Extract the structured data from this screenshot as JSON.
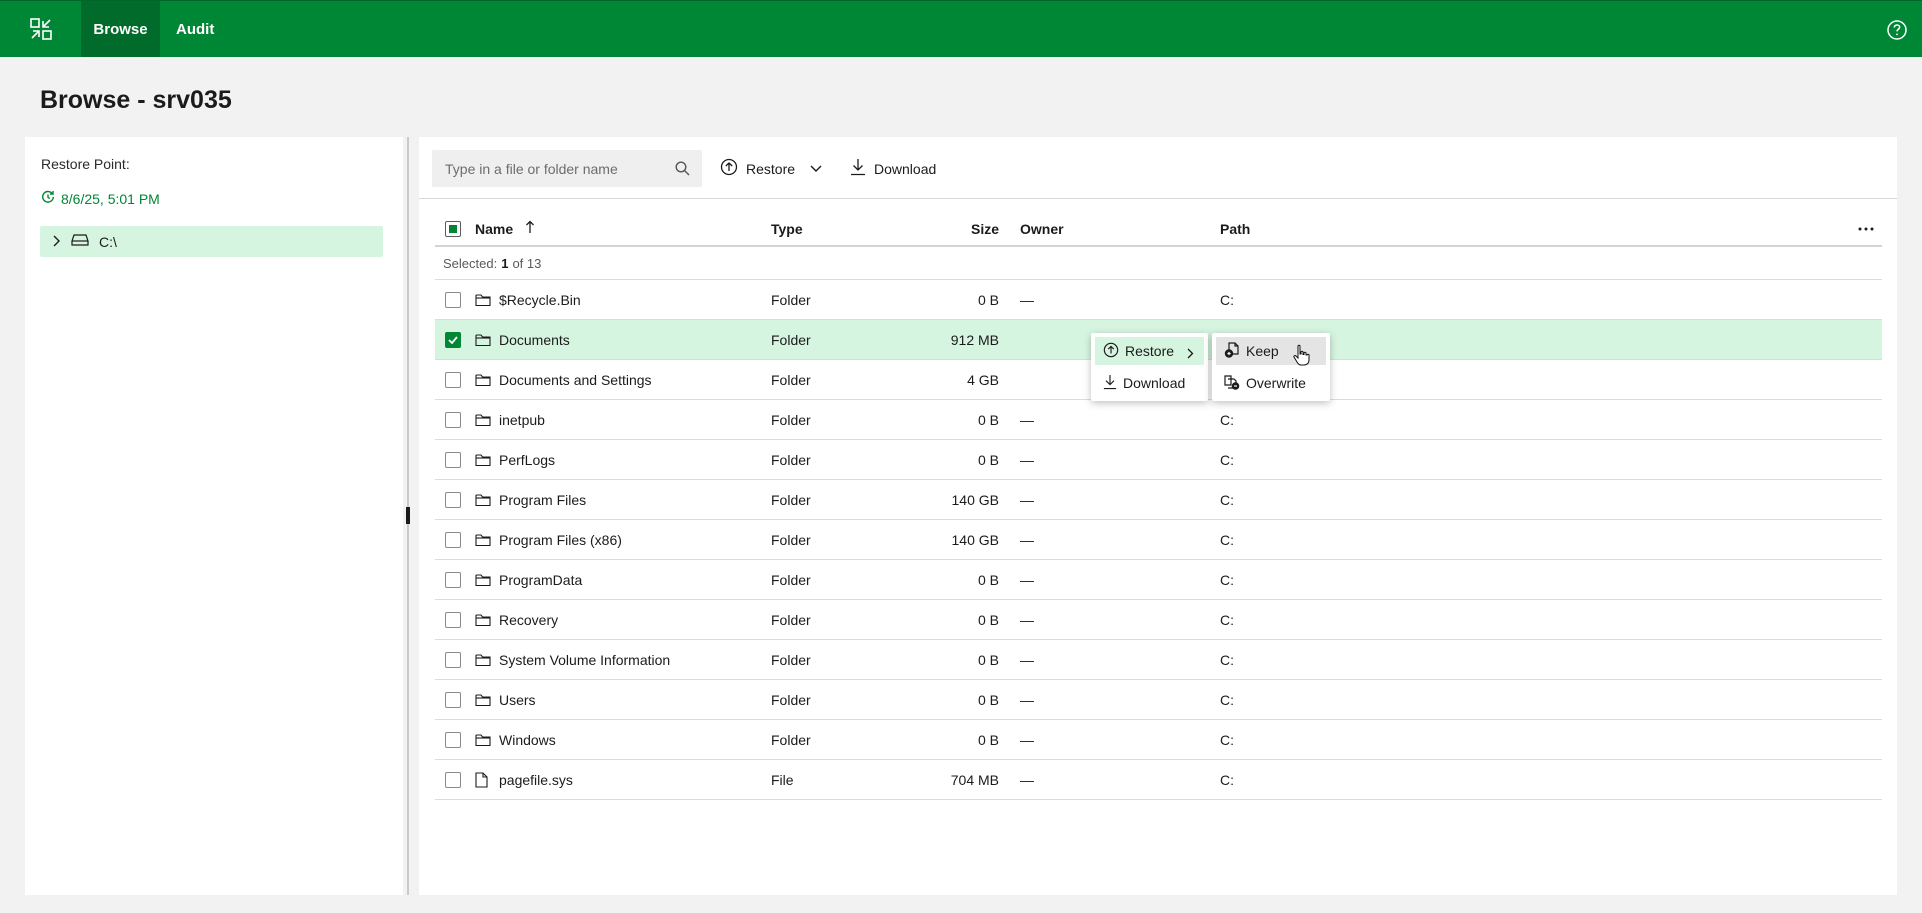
{
  "nav": {
    "tabs": [
      {
        "label": "Browse"
      },
      {
        "label": "Audit"
      }
    ]
  },
  "page": {
    "title": "Browse - srv035"
  },
  "left": {
    "restore_point_label": "Restore Point:",
    "restore_point_value": "8/6/25, 5:01 PM",
    "tree": [
      {
        "label": "C:\\"
      }
    ]
  },
  "toolbar": {
    "search_placeholder": "Type in a file or folder name",
    "restore_label": "Restore",
    "download_label": "Download"
  },
  "table": {
    "columns": {
      "name": "Name",
      "type": "Type",
      "size": "Size",
      "owner": "Owner",
      "path": "Path"
    },
    "selection": {
      "prefix": "Selected:",
      "count": "1",
      "suffix": "of 13"
    },
    "rows": [
      {
        "name": "$Recycle.Bin",
        "type": "Folder",
        "size": "0 B",
        "owner": "—",
        "path": "C:",
        "icon": "folder-icon",
        "selected": false
      },
      {
        "name": "Documents",
        "type": "Folder",
        "size": "912 MB",
        "owner": "",
        "path": "",
        "icon": "folder-icon",
        "selected": true
      },
      {
        "name": "Documents and Settings",
        "type": "Folder",
        "size": "4 GB",
        "owner": "",
        "path": "",
        "icon": "folder-icon",
        "selected": false
      },
      {
        "name": "inetpub",
        "type": "Folder",
        "size": "0 B",
        "owner": "—",
        "path": "C:",
        "icon": "folder-icon",
        "selected": false
      },
      {
        "name": "PerfLogs",
        "type": "Folder",
        "size": "0 B",
        "owner": "—",
        "path": "C:",
        "icon": "folder-icon",
        "selected": false
      },
      {
        "name": "Program Files",
        "type": "Folder",
        "size": "140 GB",
        "owner": "—",
        "path": "C:",
        "icon": "folder-icon",
        "selected": false
      },
      {
        "name": "Program Files (x86)",
        "type": "Folder",
        "size": "140 GB",
        "owner": "—",
        "path": "C:",
        "icon": "folder-icon",
        "selected": false
      },
      {
        "name": "ProgramData",
        "type": "Folder",
        "size": "0 B",
        "owner": "—",
        "path": "C:",
        "icon": "folder-icon",
        "selected": false
      },
      {
        "name": "Recovery",
        "type": "Folder",
        "size": "0 B",
        "owner": "—",
        "path": "C:",
        "icon": "folder-icon",
        "selected": false
      },
      {
        "name": "System Volume Information",
        "type": "Folder",
        "size": "0 B",
        "owner": "—",
        "path": "C:",
        "icon": "folder-icon",
        "selected": false
      },
      {
        "name": "Users",
        "type": "Folder",
        "size": "0 B",
        "owner": "—",
        "path": "C:",
        "icon": "folder-icon",
        "selected": false
      },
      {
        "name": "Windows",
        "type": "Folder",
        "size": "0 B",
        "owner": "—",
        "path": "C:",
        "icon": "folder-icon",
        "selected": false
      },
      {
        "name": "pagefile.sys",
        "type": "File",
        "size": "704 MB",
        "owner": "—",
        "path": "C:",
        "icon": "file-icon",
        "selected": false
      }
    ]
  },
  "context_menu": {
    "items": [
      {
        "label": "Restore"
      },
      {
        "label": "Download"
      }
    ],
    "submenu": [
      {
        "label": "Keep"
      },
      {
        "label": "Overwrite"
      }
    ]
  },
  "colors": {
    "brand": "#008736",
    "brand_dark": "#006b2b",
    "selected_row": "#d6f5e0"
  }
}
